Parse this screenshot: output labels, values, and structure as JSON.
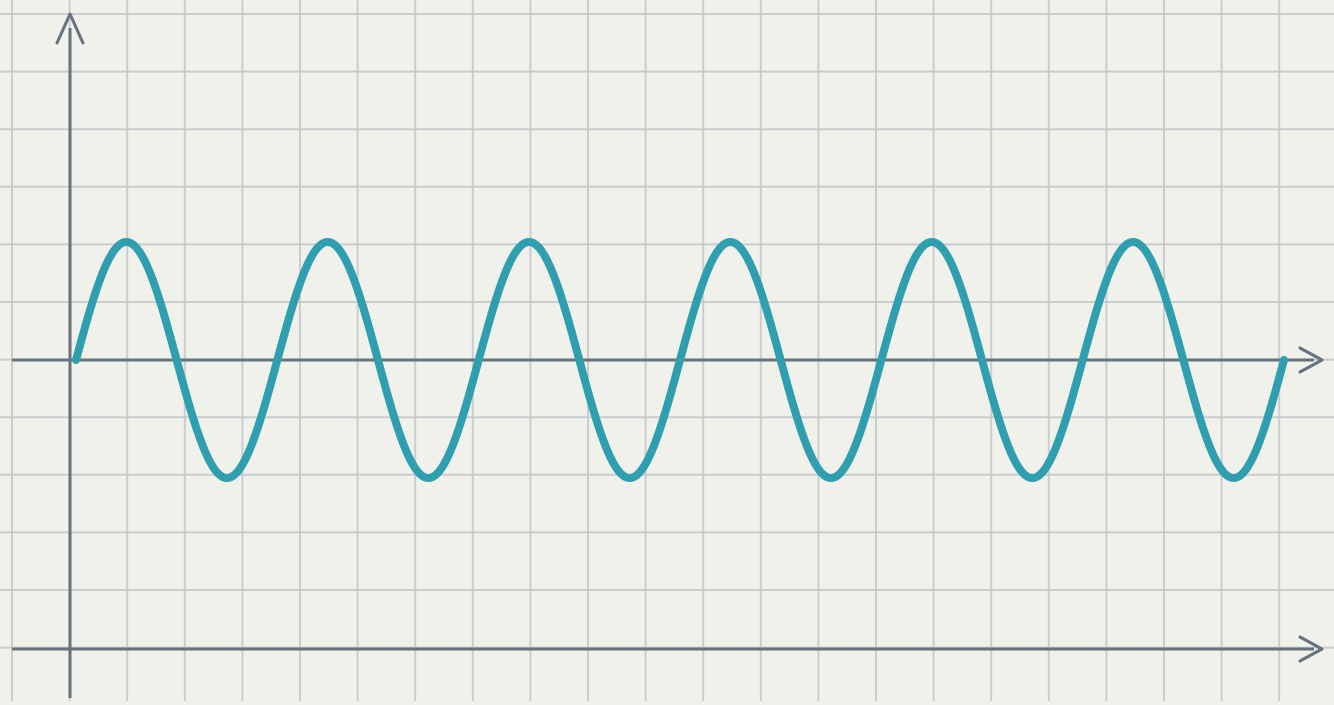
{
  "chart_data": {
    "type": "line",
    "title": "",
    "xlabel": "",
    "ylabel": "",
    "grid": true,
    "legend": "none",
    "waveform": "sine",
    "cycles": 6,
    "amplitude": 1,
    "phase_start": 0,
    "xlim": [
      0,
      6
    ],
    "ylim": [
      -1,
      1
    ],
    "series": [
      {
        "color": "#2f9fb0"
      }
    ]
  },
  "colors": {
    "background": "#f1f1ec",
    "grid": "#c3c7c9",
    "axis": "#66737d",
    "wave": "#2f9fb0"
  }
}
